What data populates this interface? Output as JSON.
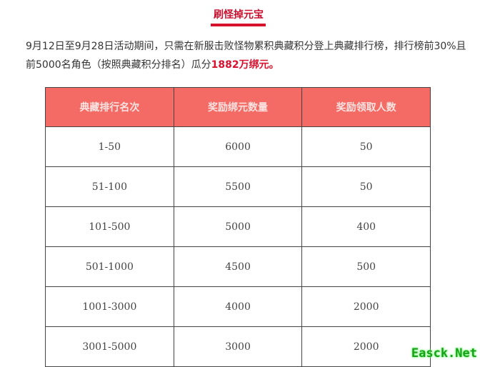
{
  "title": "刷怪掉元宝",
  "paragraph": {
    "text": "9月12日至9月28日活动期间，只需在新服击败怪物累积典藏积分登上典藏排行榜，排行榜前30%且前5000名角色（按照典藏积分排名）瓜分",
    "highlight": "1882万绑元。"
  },
  "table": {
    "headers": [
      "典藏排行名次",
      "奖励绑元数量",
      "奖励领取人数"
    ],
    "rows": [
      [
        "1-50",
        "6000",
        "50"
      ],
      [
        "51-100",
        "5500",
        "50"
      ],
      [
        "101-500",
        "5000",
        "400"
      ],
      [
        "501-1000",
        "4500",
        "500"
      ],
      [
        "1001-3000",
        "4000",
        "2000"
      ],
      [
        "3001-5000",
        "3000",
        "2000"
      ]
    ]
  },
  "watermark": "Easck.Net",
  "colors": {
    "accent": "#d7122f",
    "header_bg": "#f46a64"
  }
}
